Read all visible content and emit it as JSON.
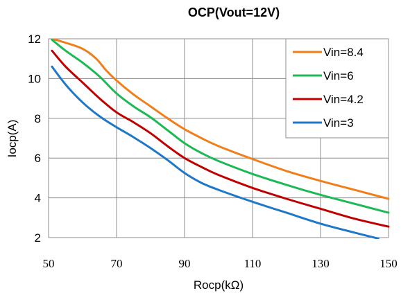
{
  "chart_data": {
    "type": "line",
    "title": "OCP(Vout=12V)",
    "xlabel": "Rocp(kΩ)",
    "ylabel": "Iocp(A)",
    "xlim": [
      50,
      150
    ],
    "ylim": [
      2,
      12
    ],
    "xticks": [
      50,
      70,
      90,
      110,
      130,
      150
    ],
    "yticks": [
      2,
      4,
      6,
      8,
      10,
      12
    ],
    "grid": true,
    "legend": "top-right",
    "series": [
      {
        "name": "Vin=8.4",
        "color": "#F07F1B",
        "x": [
          51,
          55,
          60,
          64,
          67,
          70,
          75,
          80,
          85,
          90,
          95,
          100,
          110,
          120,
          130,
          140,
          150
        ],
        "y": [
          12.0,
          11.8,
          11.5,
          11.0,
          10.4,
          9.9,
          9.2,
          8.6,
          8.0,
          7.45,
          7.0,
          6.6,
          5.95,
          5.35,
          4.85,
          4.4,
          3.95
        ]
      },
      {
        "name": "Vin=6",
        "color": "#1DB954",
        "x": [
          51,
          55,
          60,
          65,
          70,
          75,
          80,
          85,
          90,
          95,
          100,
          110,
          120,
          130,
          140,
          150
        ],
        "y": [
          11.95,
          11.4,
          10.8,
          10.1,
          9.25,
          8.6,
          8.05,
          7.4,
          6.75,
          6.25,
          5.85,
          5.2,
          4.65,
          4.15,
          3.7,
          3.25
        ]
      },
      {
        "name": "Vin=4.2",
        "color": "#C00000",
        "x": [
          51,
          55,
          60,
          65,
          70,
          75,
          80,
          85,
          90,
          95,
          100,
          110,
          120,
          130,
          140,
          150
        ],
        "y": [
          11.4,
          10.6,
          9.8,
          9.0,
          8.3,
          7.8,
          7.25,
          6.6,
          6.0,
          5.55,
          5.15,
          4.5,
          3.95,
          3.45,
          2.95,
          2.55
        ]
      },
      {
        "name": "Vin=3",
        "color": "#1F77C8",
        "x": [
          51,
          55,
          60,
          65,
          70,
          75,
          80,
          85,
          90,
          95,
          100,
          110,
          120,
          130,
          140,
          147
        ],
        "y": [
          10.6,
          9.7,
          8.8,
          8.1,
          7.55,
          7.05,
          6.5,
          5.9,
          5.25,
          4.75,
          4.4,
          3.8,
          3.25,
          2.7,
          2.25,
          1.95
        ]
      }
    ]
  }
}
